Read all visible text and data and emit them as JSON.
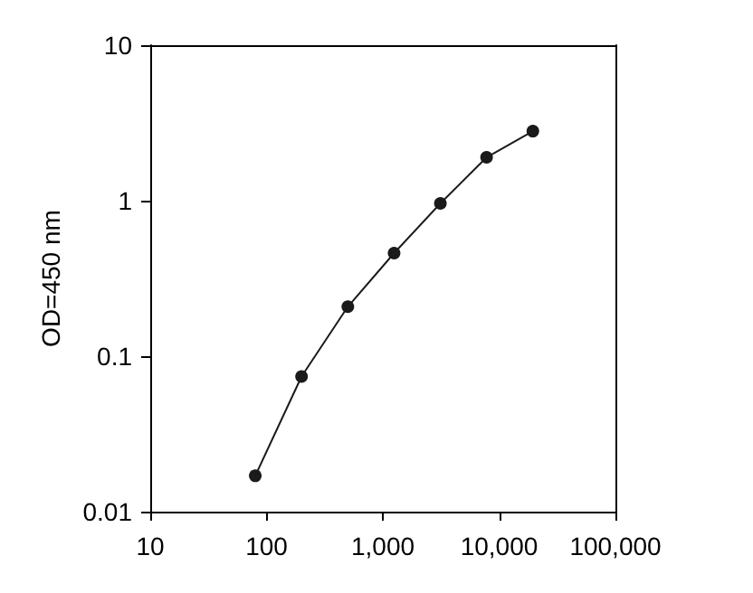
{
  "chart_data": {
    "type": "line",
    "ylabel": "OD=450 nm",
    "log": "xy",
    "xlim": [
      10,
      100000
    ],
    "xticks": [
      10,
      100,
      {
        "value": 1000,
        "label": "1,000"
      },
      {
        "value": 10000,
        "label": "10,000"
      },
      {
        "value": 100000,
        "label": "100,000"
      }
    ],
    "ylim": [
      0.01,
      10
    ],
    "yticks": [
      0.01,
      0.1,
      1,
      10
    ],
    "x": [
      80,
      200,
      500,
      1250,
      3125,
      7800,
      19500
    ],
    "series": [
      {
        "color": "#1a1a1a",
        "values": [
          0.017,
          0.074,
          0.208,
          0.46,
          0.96,
          1.9,
          2.8
        ]
      }
    ],
    "marker": "circle",
    "line_style": "solid",
    "grid": false
  }
}
